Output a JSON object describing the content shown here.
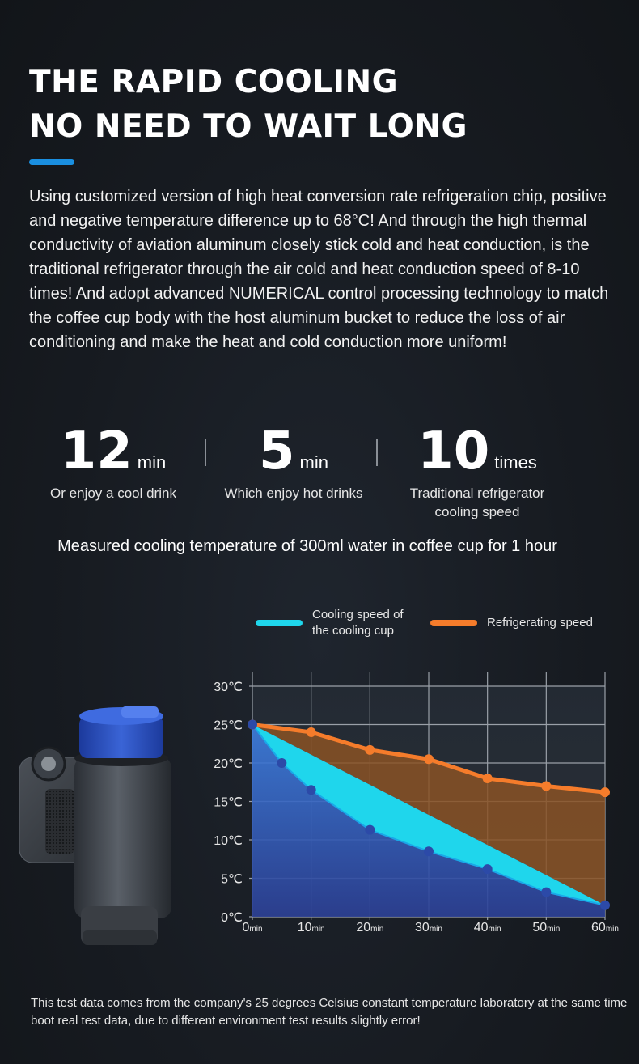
{
  "header": {
    "title_line1": "THE RAPID COOLING",
    "title_line2": "NO NEED TO WAIT LONG",
    "accent_color": "#1a8fe0"
  },
  "intro": "Using customized version of high heat conversion rate refrigeration chip, positive and negative temperature difference up to 68°C! And through the high thermal conductivity of aviation aluminum closely stick cold and heat conduction, is the traditional refrigerator through the air cold and heat conduction speed of 8-10 times! And adopt advanced NUMERICAL control processing technology to match the coffee cup body with the host aluminum bucket to reduce the loss of air conditioning and make the heat and cold conduction more uniform!",
  "stats": [
    {
      "value": "12",
      "unit": "min",
      "caption": "Or enjoy a cool drink"
    },
    {
      "value": "5",
      "unit": "min",
      "caption": "Which enjoy hot drinks"
    },
    {
      "value": "10",
      "unit": "times",
      "caption_line1": "Traditional refrigerator",
      "caption_line2": "cooling speed"
    }
  ],
  "measured_caption": "Measured cooling temperature of 300ml water in coffee cup for 1 hour",
  "legend": {
    "cooling_line1": "Cooling speed of",
    "cooling_line2": "the cooling cup",
    "refrigerating": "Refrigerating speed"
  },
  "chart_data": {
    "type": "area",
    "y_ticks": [
      "30℃",
      "25℃",
      "20℃",
      "15℃",
      "10℃",
      "5℃",
      "0℃"
    ],
    "y_values": [
      30,
      25,
      20,
      15,
      10,
      5,
      0
    ],
    "ylim": [
      0,
      30
    ],
    "x_ticks": [
      {
        "num": "0",
        "unit": "min",
        "value": 0
      },
      {
        "num": "10",
        "unit": "min",
        "value": 10
      },
      {
        "num": "20",
        "unit": "min",
        "value": 20
      },
      {
        "num": "30",
        "unit": "min",
        "value": 30
      },
      {
        "num": "40",
        "unit": "min",
        "value": 40
      },
      {
        "num": "50",
        "unit": "min",
        "value": 50
      },
      {
        "num": "60",
        "unit": "min",
        "value": 60
      }
    ],
    "xlim": [
      0,
      60
    ],
    "grid": true,
    "legend_position": "top",
    "series": [
      {
        "name": "Cooling speed of the cooling cup",
        "color": "#1fd6ec",
        "x": [
          0,
          5,
          10,
          20,
          30,
          40,
          50,
          60
        ],
        "y": [
          25,
          20,
          16.5,
          11.3,
          8.5,
          6.2,
          3.2,
          1.5
        ]
      },
      {
        "name": "Refrigerating speed",
        "color": "#f57c2b",
        "x": [
          0,
          10,
          20,
          30,
          40,
          50,
          60
        ],
        "y": [
          25,
          24,
          21.7,
          20.5,
          18,
          17,
          16.2
        ]
      }
    ]
  },
  "footnote": "This test data comes from the company's 25 degrees Celsius constant temperature laboratory at the same time boot real test data, due to different environment test results slightly error!"
}
